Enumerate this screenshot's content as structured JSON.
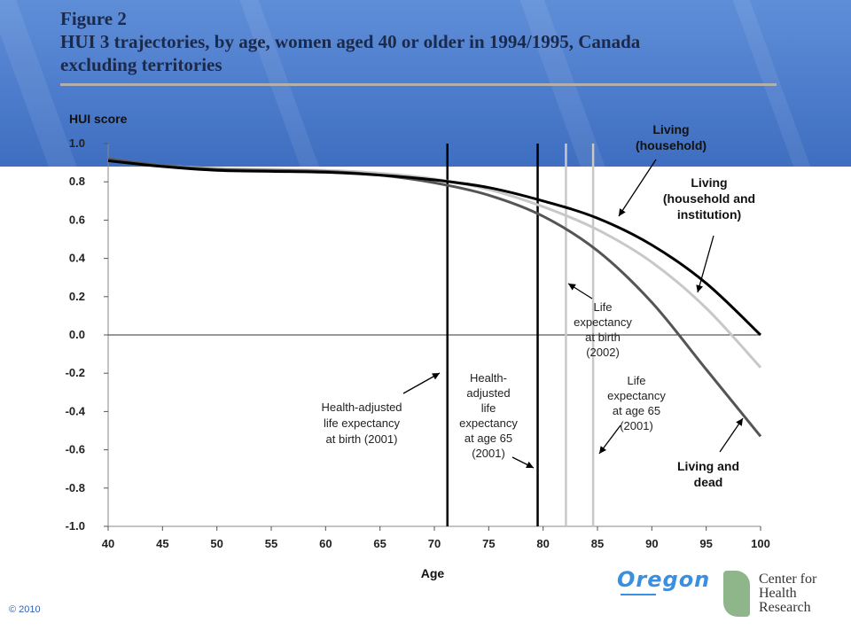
{
  "figure": {
    "number": "Figure 2",
    "title_line1": "HUI 3 trajectories, by age, women aged 40 or older in 1994/1995, Canada",
    "title_line2": "excluding territories"
  },
  "chart_data": {
    "type": "line",
    "ylabel": "HUI score",
    "xlabel": "Age",
    "xlim": [
      40,
      100
    ],
    "ylim": [
      -1.0,
      1.0
    ],
    "x_ticks": [
      40,
      45,
      50,
      55,
      60,
      65,
      70,
      75,
      80,
      85,
      90,
      95,
      100
    ],
    "y_ticks": [
      "1.0",
      "0.8",
      "0.6",
      "0.4",
      "0.2",
      "0.0",
      "-0.2",
      "-0.4",
      "-0.6",
      "-0.8",
      "-1.0"
    ],
    "grid": false,
    "zero_line": true,
    "series": [
      {
        "name": "Living (household)",
        "color": "#000000",
        "x": [
          40,
          45,
          50,
          55,
          60,
          65,
          70,
          75,
          80,
          85,
          90,
          95,
          100
        ],
        "y": [
          0.91,
          0.88,
          0.86,
          0.855,
          0.85,
          0.835,
          0.81,
          0.77,
          0.7,
          0.61,
          0.47,
          0.27,
          0.0
        ]
      },
      {
        "name": "Living (household and institution)",
        "color": "#c8c8c8",
        "x": [
          40,
          45,
          50,
          55,
          60,
          65,
          70,
          75,
          80,
          85,
          90,
          95,
          100
        ],
        "y": [
          0.92,
          0.885,
          0.87,
          0.865,
          0.86,
          0.845,
          0.815,
          0.76,
          0.67,
          0.55,
          0.38,
          0.14,
          -0.17
        ]
      },
      {
        "name": "Living and dead",
        "color": "#555555",
        "x": [
          40,
          45,
          50,
          55,
          60,
          65,
          70,
          75,
          80,
          85,
          90,
          95,
          100
        ],
        "y": [
          0.92,
          0.885,
          0.865,
          0.86,
          0.855,
          0.835,
          0.795,
          0.73,
          0.62,
          0.44,
          0.17,
          -0.18,
          -0.53
        ]
      }
    ],
    "vertical_lines": [
      {
        "x": 71.2,
        "color": "#000000"
      },
      {
        "x": 79.5,
        "color": "#000000"
      },
      {
        "x": 82.1,
        "color": "#c8c8c8"
      },
      {
        "x": 84.6,
        "color": "#c8c8c8"
      }
    ],
    "annotations": {
      "living_household": [
        "Living",
        "(household)"
      ],
      "living_institution": [
        "Living",
        "(household and",
        "institution)"
      ],
      "living_dead": [
        "Living and",
        "dead"
      ],
      "hale_birth": [
        "Health-adjusted",
        "life expectancy",
        "at birth (2001)"
      ],
      "hale_65": [
        "Health-",
        "adjusted",
        "life",
        "expectancy",
        "at age 65",
        "(2001)"
      ],
      "le_birth": [
        "Life",
        "expectancy",
        "at birth",
        "(2002)"
      ],
      "le_65": [
        "Life",
        "expectancy",
        "at age 65",
        "(2001)"
      ]
    }
  },
  "footer": {
    "oregon_logo": "Oregon",
    "chr_logo_lines": [
      "Center for",
      "Health",
      "Research"
    ],
    "copyright": "© 2010"
  }
}
